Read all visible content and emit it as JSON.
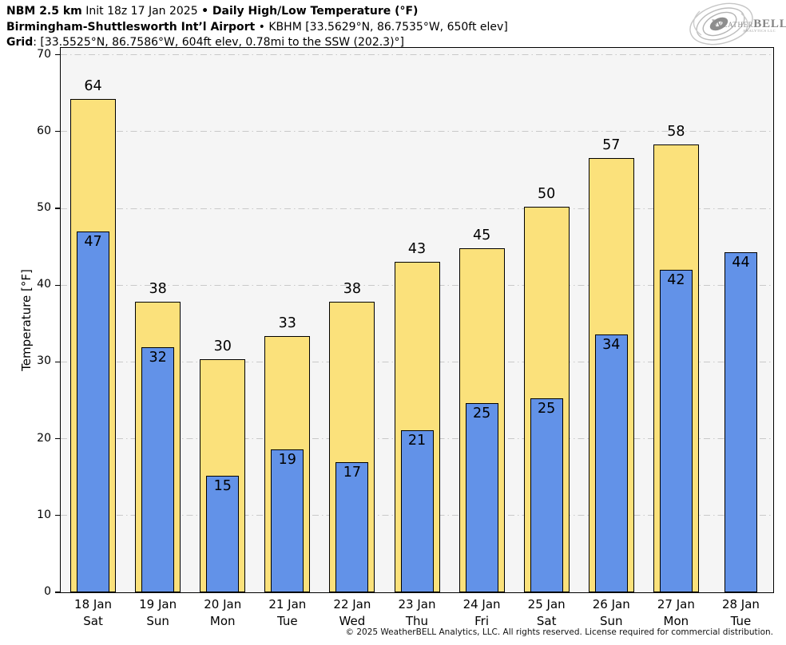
{
  "header": {
    "model": "NBM 2.5 km",
    "init": " Init 18z 17 Jan 2025 ",
    "product": "• Daily High/Low Temperature (°F)",
    "station_name": "Birmingham-Shuttlesworth Intʼl Airport",
    "station_details": " • KBHM [33.5629°N, 86.7535°W, 650ft elev]",
    "grid_label": "Grid",
    "grid_details": ": [33.5525°N, 86.7586°W, 604ft elev, 0.78mi to the SSW (202.3)°]"
  },
  "logo": {
    "brand_w": "W",
    "brand_eather": "EATHER",
    "brand_bell": "BELL",
    "subtext": "Analytics LLC",
    "icon": "hurricane-swirl-icon",
    "color": "#8f8f8f"
  },
  "chart_data": {
    "type": "bar",
    "title": "NBM 2.5 km Init 18z 17 Jan 2025 • Daily High/Low Temperature (°F)",
    "subtitle": "Birmingham-Shuttlesworth Intʼl Airport • KBHM [33.5629°N, 86.7535°W, 650ft elev]",
    "xlabel": "",
    "ylabel": "Temperature [°F]",
    "ylim": [
      0,
      70.9
    ],
    "yticks": [
      0,
      10,
      20,
      30,
      40,
      50,
      60,
      70
    ],
    "grid": {
      "horizontal": true,
      "style": "dash-dot",
      "color": "#c9c9c9"
    },
    "legend_position": "none",
    "plot_background": "#f5f5f5",
    "colors": {
      "high": "#FBE17B",
      "low": "#6292E8",
      "bar_edge": "#000000"
    },
    "series": [
      {
        "name": "High",
        "values": [
          64,
          38,
          30,
          33,
          38,
          43,
          45,
          50,
          57,
          58,
          null
        ]
      },
      {
        "name": "Low",
        "values": [
          47,
          32,
          15,
          19,
          17,
          21,
          25,
          25,
          34,
          42,
          44
        ]
      }
    ],
    "days": [
      {
        "date": "18 Jan",
        "weekday": "Sat",
        "high": 64,
        "low": 47,
        "high_bar_value": 64.2,
        "low_bar_value": 47.0
      },
      {
        "date": "19 Jan",
        "weekday": "Sun",
        "high": 38,
        "low": 32,
        "high_bar_value": 37.8,
        "low_bar_value": 31.9
      },
      {
        "date": "20 Jan",
        "weekday": "Mon",
        "high": 30,
        "low": 15,
        "high_bar_value": 30.4,
        "low_bar_value": 15.2
      },
      {
        "date": "21 Jan",
        "weekday": "Tue",
        "high": 33,
        "low": 19,
        "high_bar_value": 33.4,
        "low_bar_value": 18.6
      },
      {
        "date": "22 Jan",
        "weekday": "Wed",
        "high": 38,
        "low": 17,
        "high_bar_value": 37.8,
        "low_bar_value": 16.9
      },
      {
        "date": "23 Jan",
        "weekday": "Thu",
        "high": 43,
        "low": 21,
        "high_bar_value": 43.0,
        "low_bar_value": 21.1
      },
      {
        "date": "24 Jan",
        "weekday": "Fri",
        "high": 45,
        "low": 25,
        "high_bar_value": 44.8,
        "low_bar_value": 24.6
      },
      {
        "date": "25 Jan",
        "weekday": "Sat",
        "high": 50,
        "low": 25,
        "high_bar_value": 50.2,
        "low_bar_value": 25.3
      },
      {
        "date": "26 Jan",
        "weekday": "Sun",
        "high": 57,
        "low": 34,
        "high_bar_value": 56.6,
        "low_bar_value": 33.6
      },
      {
        "date": "27 Jan",
        "weekday": "Mon",
        "high": 58,
        "low": 42,
        "high_bar_value": 58.3,
        "low_bar_value": 42.0
      },
      {
        "date": "28 Jan",
        "weekday": "Tue",
        "high": null,
        "low": 44,
        "high_bar_value": null,
        "low_bar_value": 44.3
      }
    ]
  },
  "footer": {
    "copyright": "© 2025 WeatherBELL Analytics, LLC. All rights reserved. License required for commercial distribution."
  }
}
